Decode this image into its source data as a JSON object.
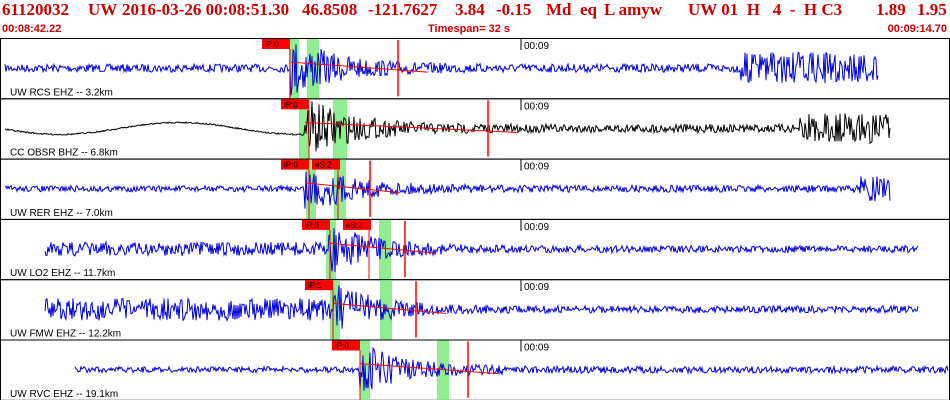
{
  "header": {
    "event_id": "61120032",
    "network": "UW",
    "datetime": "2016-03-26 00:08:51.30",
    "lat": "46.8508",
    "lon": "-121.7627",
    "depth": "3.84",
    "magnitude": "-0.15",
    "mag_type": "Md",
    "event_type": "eq",
    "flags": "L amyw",
    "station_info": "UW 01  H   4  -  H C3",
    "value_a": "1.89",
    "value_b": "1.95"
  },
  "subheader": {
    "start_time": "00:08:42.22",
    "timespan": "Timespan=  32 s",
    "end_time": "00:09:14.70"
  },
  "minute_marker": "00:09",
  "colors": {
    "header_text": "#cc0000",
    "trace_blue": "#0000dd",
    "trace_black": "#000000",
    "pick_red": "#ff0000",
    "window_green": "#90ee90"
  },
  "traces": [
    {
      "label": "UW RCS EHZ -- 3.2km",
      "color": "blue",
      "picks": [
        {
          "label": "iP:0",
          "kind": "P"
        }
      ]
    },
    {
      "label": "CC OBSR BHZ -- 6.8km",
      "color": "black",
      "picks": [
        {
          "label": "iP:0",
          "kind": "P"
        }
      ]
    },
    {
      "label": "UW RER EHZ -- 7.0km",
      "color": "blue",
      "picks": [
        {
          "label": "iP:0",
          "kind": "P"
        },
        {
          "label": "eS:2",
          "kind": "S"
        }
      ]
    },
    {
      "label": "UW LO2 EHZ -- 11.7km",
      "color": "blue",
      "picks": [
        {
          "label": "iP:0",
          "kind": "P"
        },
        {
          "label": "eS:2",
          "kind": "S"
        }
      ]
    },
    {
      "label": "UW FMW EHZ -- 12.2km",
      "color": "blue",
      "picks": [
        {
          "label": "iP:1",
          "kind": "P"
        }
      ]
    },
    {
      "label": "UW RVC EHZ -- 19.1km",
      "color": "blue",
      "picks": [
        {
          "label": "iP:0",
          "kind": "P"
        }
      ]
    }
  ]
}
